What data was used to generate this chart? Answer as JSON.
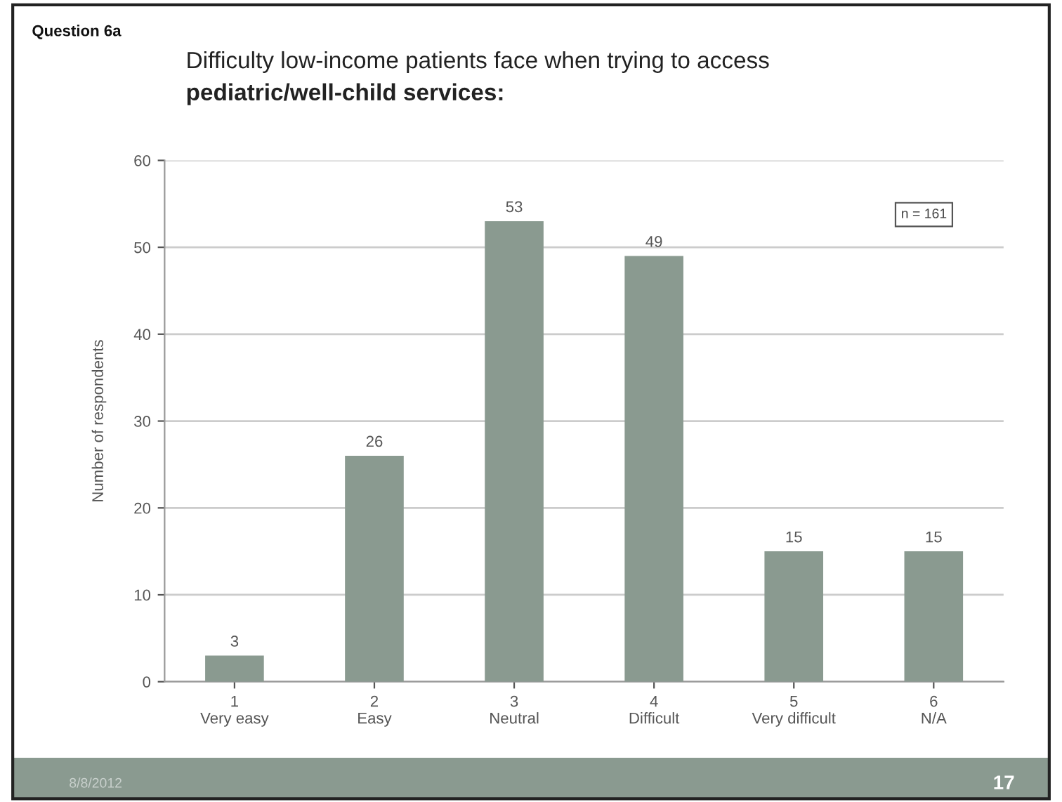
{
  "chart_data": {
    "type": "bar",
    "title": "Difficulty low-income patients face when trying to access",
    "subtitle": "pediatric/well-child services:",
    "ylabel": "Number of respondents",
    "categories": [
      "1\nVery easy",
      "2\nEasy",
      "3\nNeutral",
      "4\nDifficult",
      "5\nVery difficult",
      "6\nN/A"
    ],
    "values": [
      3,
      26,
      53,
      49,
      15,
      15
    ],
    "color": "#8a9a90",
    "ylim": [
      0,
      60
    ],
    "yticks": [
      0,
      10,
      20,
      30,
      40,
      50,
      60
    ],
    "grid": "y",
    "data_labels": true,
    "legend": false,
    "annotations": [
      "Question 6a",
      "n = 161",
      "8/8/2012",
      "17"
    ]
  }
}
